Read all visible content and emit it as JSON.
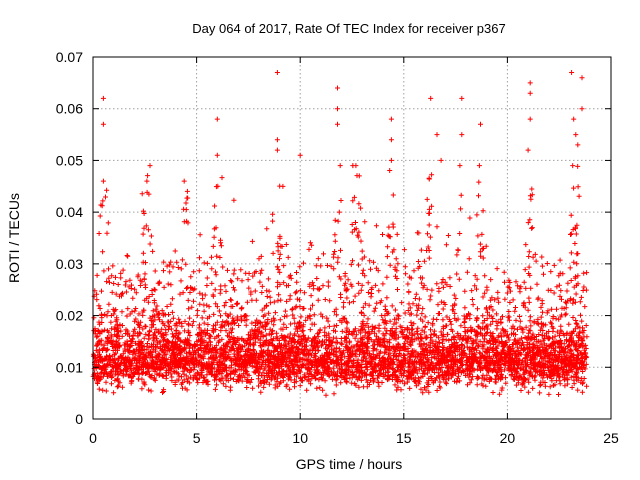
{
  "chart_data": {
    "type": "scatter",
    "title": "Day 064 of 2017, Rate Of TEC Index for receiver p367",
    "xlabel": "GPS time / hours",
    "ylabel": "ROTI / TECUs",
    "xlim": [
      0,
      25
    ],
    "ylim": [
      0,
      0.07
    ],
    "xticks": [
      0,
      5,
      10,
      15,
      20,
      25
    ],
    "xtick_labels": [
      "0",
      "5",
      "10",
      "15",
      "20",
      "25"
    ],
    "yticks": [
      0,
      0.01,
      0.02,
      0.03,
      0.04,
      0.05,
      0.06,
      0.07
    ],
    "ytick_labels": [
      "0",
      "0.01",
      "0.02",
      "0.03",
      "0.04",
      "0.05",
      "0.06",
      "0.07"
    ],
    "grid": true,
    "marker": "plus",
    "color": "#ff0000",
    "series": [
      {
        "name": "ROTI",
        "description_of_distribution": "dense cloud of points from 0 to ~23.8 hours, bulk between 0.005 and 0.025 TECU/s",
        "notable_points": [
          {
            "x": 0.5,
            "y": 0.062
          },
          {
            "x": 0.5,
            "y": 0.057
          },
          {
            "x": 0.5,
            "y": 0.046
          },
          {
            "x": 2.6,
            "y": 0.046
          },
          {
            "x": 4.4,
            "y": 0.046
          },
          {
            "x": 6.0,
            "y": 0.058
          },
          {
            "x": 6.0,
            "y": 0.051
          },
          {
            "x": 8.9,
            "y": 0.067
          },
          {
            "x": 8.9,
            "y": 0.054
          },
          {
            "x": 8.9,
            "y": 0.052
          },
          {
            "x": 10.0,
            "y": 0.051
          },
          {
            "x": 11.8,
            "y": 0.064
          },
          {
            "x": 11.8,
            "y": 0.06
          },
          {
            "x": 11.8,
            "y": 0.057
          },
          {
            "x": 14.4,
            "y": 0.058
          },
          {
            "x": 14.4,
            "y": 0.054
          },
          {
            "x": 14.4,
            "y": 0.05
          },
          {
            "x": 16.3,
            "y": 0.062
          },
          {
            "x": 16.6,
            "y": 0.055
          },
          {
            "x": 16.8,
            "y": 0.05
          },
          {
            "x": 17.8,
            "y": 0.062
          },
          {
            "x": 17.8,
            "y": 0.055
          },
          {
            "x": 18.7,
            "y": 0.057
          },
          {
            "x": 21.1,
            "y": 0.065
          },
          {
            "x": 21.1,
            "y": 0.063
          },
          {
            "x": 21.1,
            "y": 0.058
          },
          {
            "x": 21.0,
            "y": 0.052
          },
          {
            "x": 23.1,
            "y": 0.067
          },
          {
            "x": 23.6,
            "y": 0.066
          },
          {
            "x": 23.6,
            "y": 0.06
          },
          {
            "x": 23.2,
            "y": 0.058
          },
          {
            "x": 23.3,
            "y": 0.055
          },
          {
            "x": 23.4,
            "y": 0.053
          }
        ]
      }
    ]
  }
}
